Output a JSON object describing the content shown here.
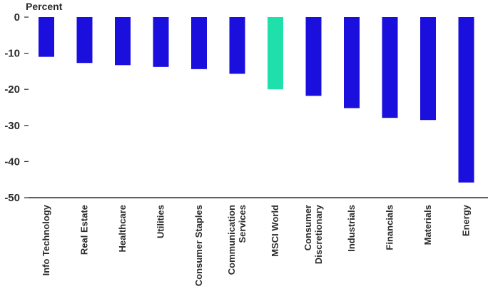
{
  "chart_data": {
    "type": "bar",
    "ylabel": "Percent",
    "categories": [
      [
        "Info Technology"
      ],
      [
        "Real Estate"
      ],
      [
        "Healthcare"
      ],
      [
        "Utilities"
      ],
      [
        "Consumer Staples"
      ],
      [
        "Communication",
        "Services"
      ],
      [
        "MSCI World"
      ],
      [
        "Consumer",
        "Discretionary"
      ],
      [
        "Industrials"
      ],
      [
        "Financials"
      ],
      [
        "Materials"
      ],
      [
        "Energy"
      ]
    ],
    "values": [
      -11,
      -12.7,
      -13.3,
      -13.8,
      -14.4,
      -15.7,
      -20,
      -21.8,
      -25.2,
      -27.9,
      -28.5,
      -45.8
    ],
    "ylim": [
      -50,
      0
    ],
    "yticks": [
      0,
      -10,
      -20,
      -30,
      -40,
      -50
    ],
    "highlight_index": 6,
    "colors": {
      "bar": "#1a0fdc",
      "highlight": "#1fe0aa",
      "axis": "#2b2b2b"
    }
  }
}
